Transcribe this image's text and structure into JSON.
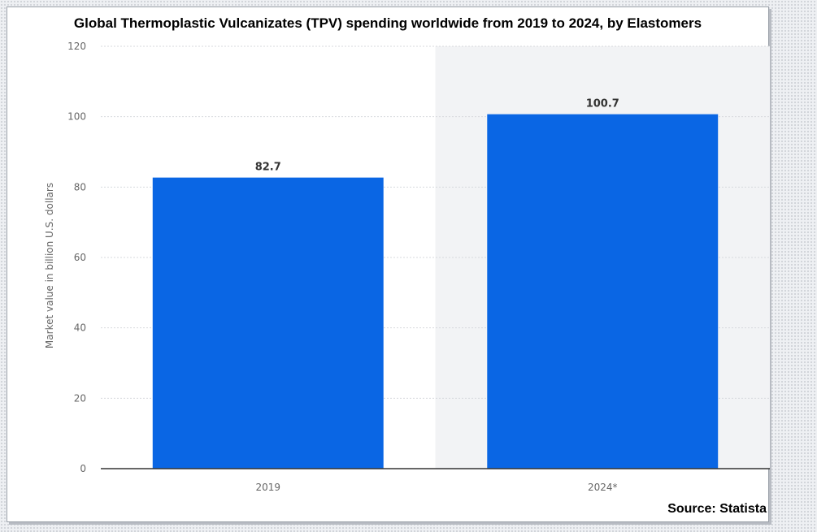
{
  "title": "Global Thermoplastic Vulcanizates (TPV) spending worldwide from 2019 to 2024, by Elastomers",
  "source_label": "Source: Statista",
  "colors": {
    "bar": "#0a66e4",
    "grid": "#d7d9dd",
    "axis": "#333333",
    "tick_text": "#666666",
    "label_text": "#333333",
    "forecast_band": "#f2f3f5"
  },
  "chart_data": {
    "type": "bar",
    "categories": [
      "2019",
      "2024*"
    ],
    "values": [
      82.7,
      100.7
    ],
    "value_labels": [
      "82.7",
      "100.7"
    ],
    "ylabel": "Market value in billion U.S. dollars",
    "xlabel": "",
    "ylim": [
      0,
      120
    ],
    "yticks": [
      0,
      20,
      40,
      60,
      80,
      100,
      120
    ],
    "grid": true,
    "legend": "none",
    "shaded_category": "2024*"
  }
}
